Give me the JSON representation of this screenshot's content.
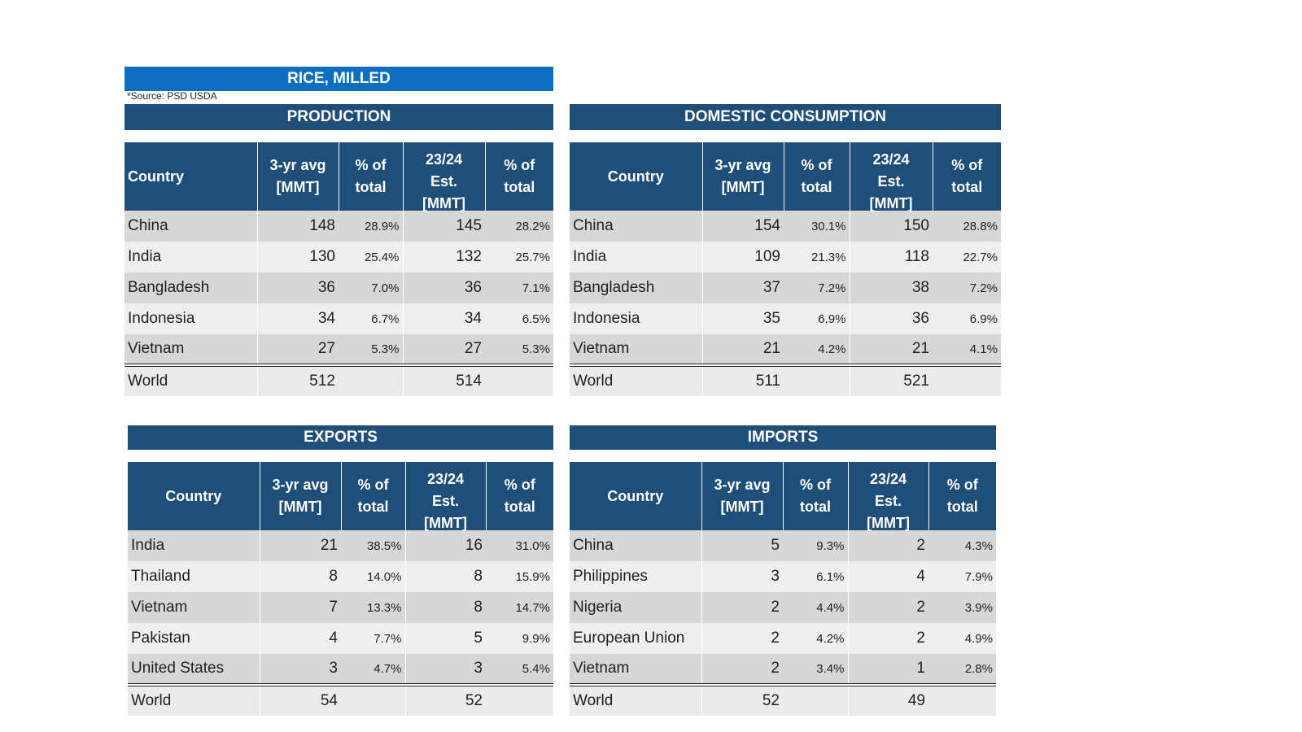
{
  "title": "RICE, MILLED",
  "source_note": "*Source: PSD USDA",
  "headers": {
    "country": "Country",
    "avg_line1": "3-yr avg",
    "avg_line2": "[MMT]",
    "pct_line1": "% of",
    "pct_line2": "total",
    "est_line1": "23/24",
    "est_line2": "Est.",
    "est_line3": "[MMT]"
  },
  "panels": {
    "production": {
      "title": "PRODUCTION",
      "rows": [
        {
          "country": "China",
          "avg": "148",
          "avg_pct": "28.9%",
          "est": "145",
          "est_pct": "28.2%"
        },
        {
          "country": "India",
          "avg": "130",
          "avg_pct": "25.4%",
          "est": "132",
          "est_pct": "25.7%"
        },
        {
          "country": "Bangladesh",
          "avg": "36",
          "avg_pct": "7.0%",
          "est": "36",
          "est_pct": "7.1%"
        },
        {
          "country": "Indonesia",
          "avg": "34",
          "avg_pct": "6.7%",
          "est": "34",
          "est_pct": "6.5%"
        },
        {
          "country": "Vietnam",
          "avg": "27",
          "avg_pct": "5.3%",
          "est": "27",
          "est_pct": "5.3%"
        }
      ],
      "world": {
        "country": "World",
        "avg": "512",
        "est": "514"
      }
    },
    "consumption": {
      "title": "DOMESTIC CONSUMPTION",
      "rows": [
        {
          "country": "China",
          "avg": "154",
          "avg_pct": "30.1%",
          "est": "150",
          "est_pct": "28.8%"
        },
        {
          "country": "India",
          "avg": "109",
          "avg_pct": "21.3%",
          "est": "118",
          "est_pct": "22.7%"
        },
        {
          "country": "Bangladesh",
          "avg": "37",
          "avg_pct": "7.2%",
          "est": "38",
          "est_pct": "7.2%"
        },
        {
          "country": "Indonesia",
          "avg": "35",
          "avg_pct": "6.9%",
          "est": "36",
          "est_pct": "6.9%"
        },
        {
          "country": "Vietnam",
          "avg": "21",
          "avg_pct": "4.2%",
          "est": "21",
          "est_pct": "4.1%"
        }
      ],
      "world": {
        "country": "World",
        "avg": "511",
        "est": "521"
      }
    },
    "exports": {
      "title": "EXPORTS",
      "rows": [
        {
          "country": "India",
          "avg": "21",
          "avg_pct": "38.5%",
          "est": "16",
          "est_pct": "31.0%"
        },
        {
          "country": "Thailand",
          "avg": "8",
          "avg_pct": "14.0%",
          "est": "8",
          "est_pct": "15.9%"
        },
        {
          "country": "Vietnam",
          "avg": "7",
          "avg_pct": "13.3%",
          "est": "8",
          "est_pct": "14.7%"
        },
        {
          "country": "Pakistan",
          "avg": "4",
          "avg_pct": "7.7%",
          "est": "5",
          "est_pct": "9.9%"
        },
        {
          "country": "United States",
          "avg": "3",
          "avg_pct": "4.7%",
          "est": "3",
          "est_pct": "5.4%"
        }
      ],
      "world": {
        "country": "World",
        "avg": "54",
        "est": "52"
      }
    },
    "imports": {
      "title": "IMPORTS",
      "rows": [
        {
          "country": "China",
          "avg": "5",
          "avg_pct": "9.3%",
          "est": "2",
          "est_pct": "4.3%"
        },
        {
          "country": "Philippines",
          "avg": "3",
          "avg_pct": "6.1%",
          "est": "4",
          "est_pct": "7.9%"
        },
        {
          "country": "Nigeria",
          "avg": "2",
          "avg_pct": "4.4%",
          "est": "2",
          "est_pct": "3.9%"
        },
        {
          "country": "European Union",
          "avg": "2",
          "avg_pct": "4.2%",
          "est": "2",
          "est_pct": "4.9%"
        },
        {
          "country": "Vietnam",
          "avg": "2",
          "avg_pct": "3.4%",
          "est": "1",
          "est_pct": "2.8%"
        }
      ],
      "world": {
        "country": "World",
        "avg": "52",
        "est": "49"
      }
    }
  }
}
